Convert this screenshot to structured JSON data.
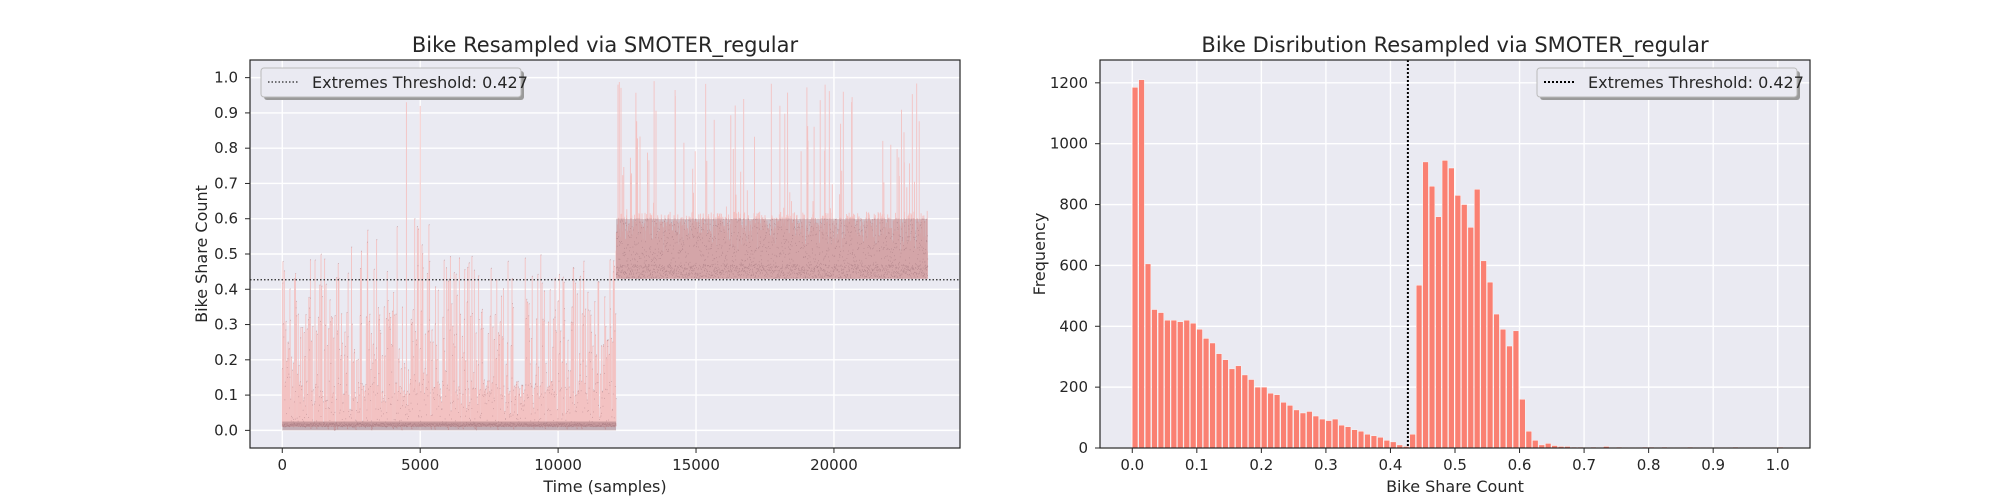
{
  "colors": {
    "plot_bg": "#eaeaf2",
    "grid": "#ffffff",
    "stem": "#f3c2c2",
    "marker": "#9c7077",
    "bar": "#fa8072",
    "threshold": "#000000"
  },
  "chart_data": [
    {
      "type": "scatter",
      "title": "Bike Resampled via SMOTER_regular",
      "xlabel": "Time (samples)",
      "ylabel": "Bike Share Count",
      "xlim": [
        -1170,
        24570
      ],
      "ylim": [
        -0.05,
        1.05
      ],
      "xticks": [
        0,
        5000,
        10000,
        15000,
        20000
      ],
      "yticks": [
        0.0,
        0.1,
        0.2,
        0.3,
        0.4,
        0.5,
        0.6,
        0.7,
        0.8,
        0.9,
        1.0
      ],
      "grid": true,
      "legend": {
        "position": "upper left",
        "label": "Extremes Threshold: 0.427"
      },
      "threshold": 0.427,
      "series": [
        {
          "x_range": [
            0,
            12100
          ],
          "density": "dense",
          "band": [
            0.0,
            0.3
          ],
          "max": 0.6,
          "spikes": [
            [
              4500,
              0.93
            ],
            [
              5000,
              0.92
            ]
          ]
        },
        {
          "x_range": [
            12100,
            23400
          ],
          "density": "dense",
          "band": [
            0.43,
            0.62
          ],
          "max": 1.0
        }
      ]
    },
    {
      "type": "bar",
      "title": "Bike Disribution Resampled via SMOTER_regular",
      "xlabel": "Bike Share Count",
      "ylabel": "Frequency",
      "xlim": [
        -0.05,
        1.05
      ],
      "ylim": [
        0,
        1275
      ],
      "xticks": [
        0.0,
        0.1,
        0.2,
        0.3,
        0.4,
        0.5,
        0.6,
        0.7,
        0.8,
        0.9,
        1.0
      ],
      "yticks": [
        0,
        200,
        400,
        600,
        800,
        1000,
        1200
      ],
      "grid": true,
      "legend": {
        "position": "upper right",
        "label": "Extremes Threshold: 0.427"
      },
      "threshold": 0.427,
      "bin_width": 0.01,
      "bin_start": 0.0,
      "values": [
        1185,
        1210,
        605,
        455,
        445,
        420,
        420,
        415,
        420,
        410,
        390,
        360,
        345,
        310,
        290,
        260,
        270,
        240,
        225,
        200,
        200,
        180,
        175,
        150,
        140,
        125,
        115,
        120,
        105,
        95,
        90,
        95,
        75,
        70,
        60,
        55,
        45,
        40,
        35,
        25,
        20,
        10,
        5,
        45,
        535,
        940,
        860,
        760,
        945,
        920,
        830,
        800,
        725,
        850,
        615,
        545,
        440,
        390,
        335,
        385,
        160,
        55,
        25,
        10,
        15,
        8,
        5,
        5,
        3,
        3,
        2,
        3,
        2,
        5,
        2,
        3,
        2,
        2,
        2,
        3,
        3,
        2,
        3,
        2,
        2,
        2,
        3,
        2,
        2,
        2,
        2,
        2,
        2,
        3,
        2,
        2,
        2,
        2,
        2,
        2,
        3
      ]
    }
  ]
}
